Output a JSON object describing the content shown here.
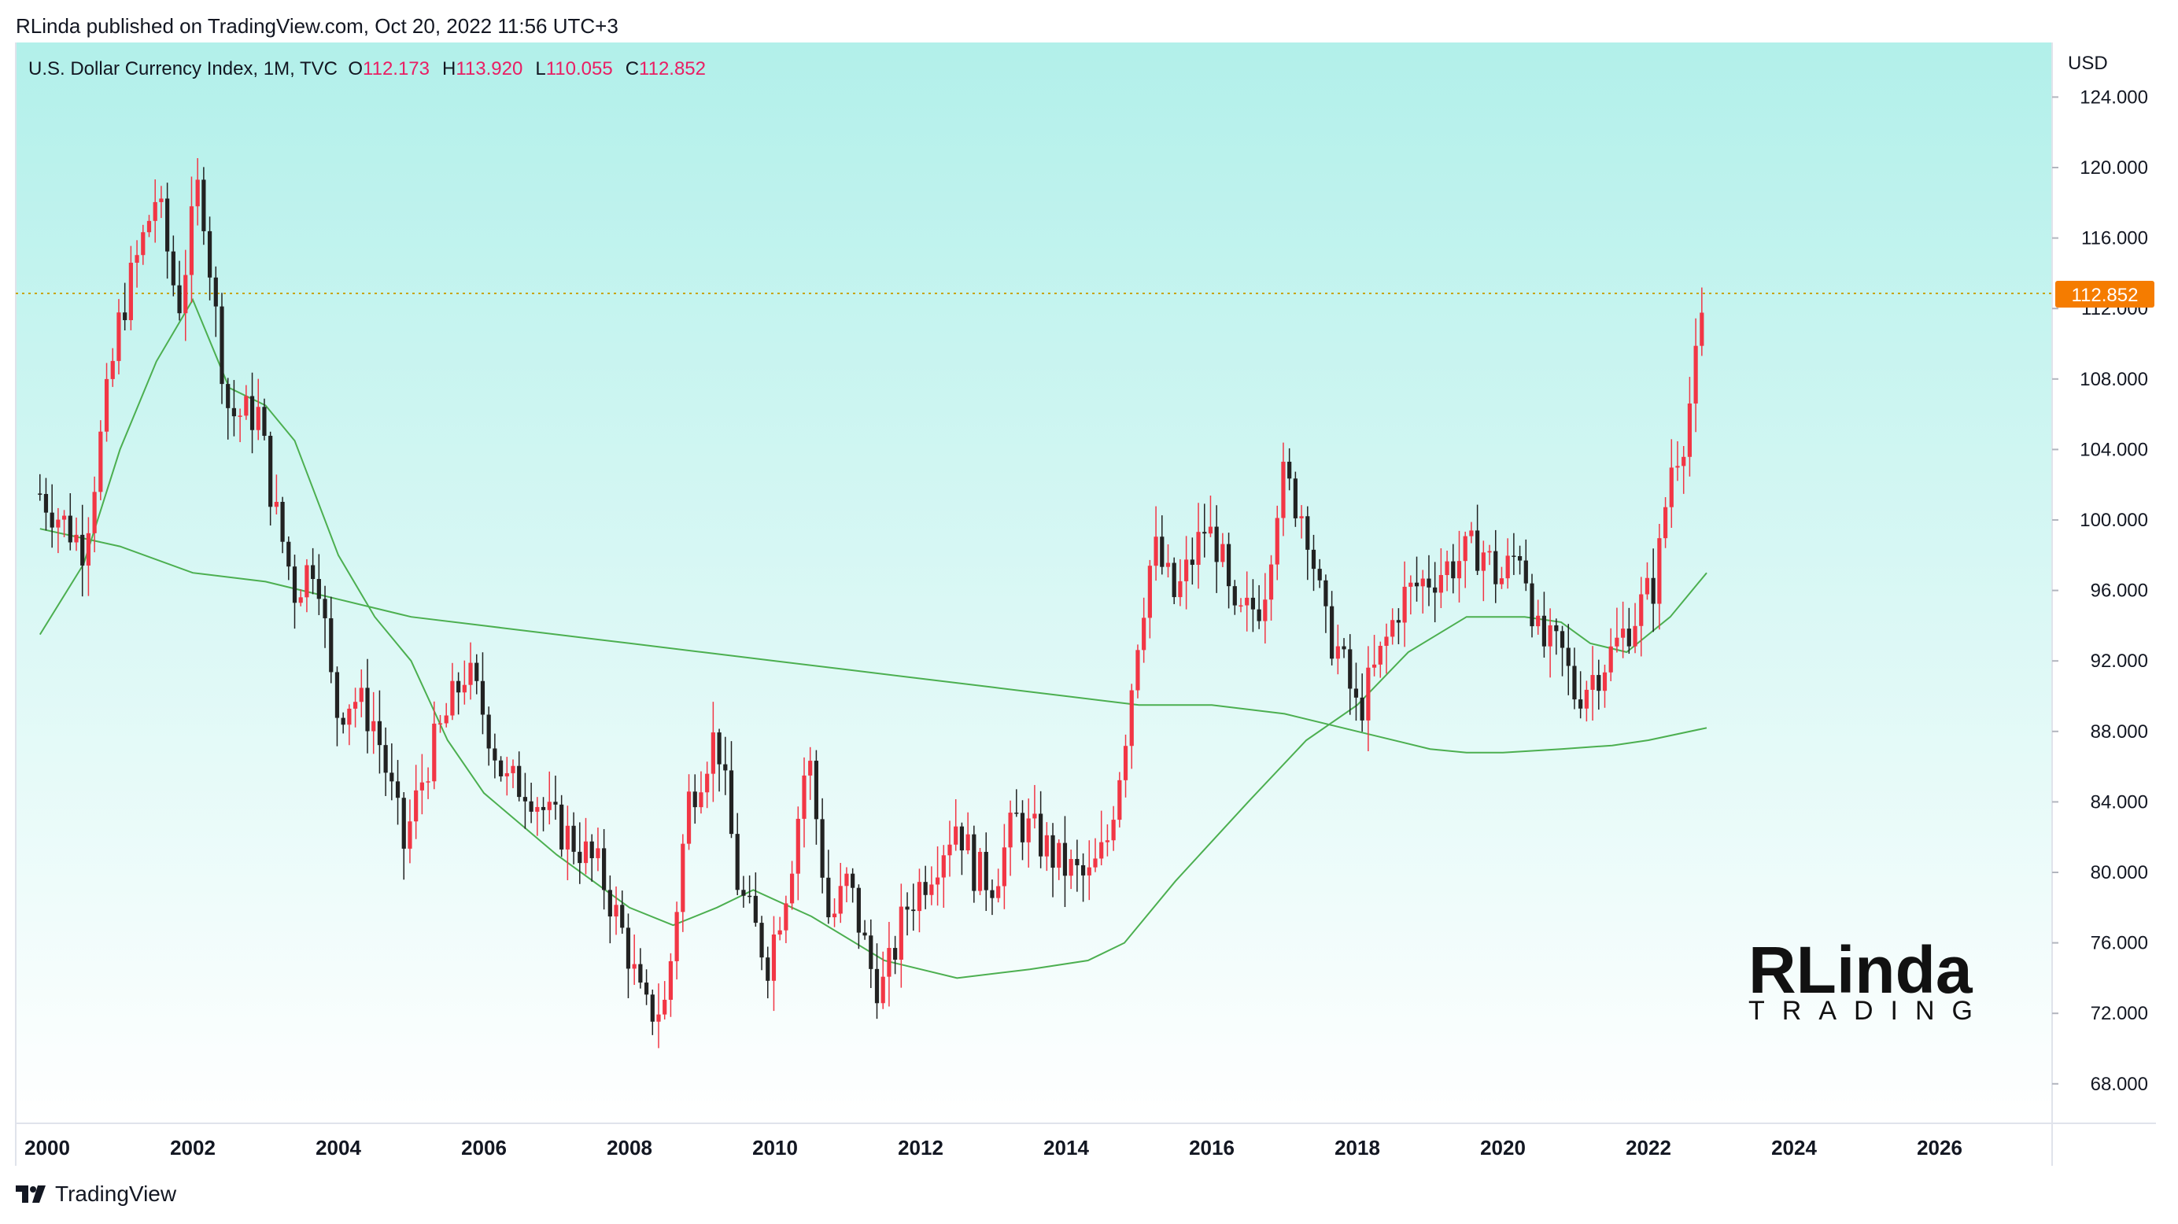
{
  "header": {
    "publisher_line": "RLinda published on TradingView.com, Oct 20, 2022 11:56 UTC+3"
  },
  "legend": {
    "symbol": "U.S. Dollar Currency Index, 1M, TVC",
    "open_label": "O",
    "open": "112.173",
    "high_label": "H",
    "high": "113.920",
    "low_label": "L",
    "low": "110.055",
    "close_label": "C",
    "close": "112.852"
  },
  "price_axis": {
    "currency": "USD",
    "ticks": [
      "124.000",
      "120.000",
      "116.000",
      "112.000",
      "108.000",
      "104.000",
      "100.000",
      "96.000",
      "92.000",
      "88.000",
      "84.000",
      "80.000",
      "76.000",
      "72.000",
      "68.000"
    ],
    "last_price_label": "112.852"
  },
  "time_axis": {
    "ticks": [
      "2000",
      "2002",
      "2004",
      "2006",
      "2008",
      "2010",
      "2012",
      "2014",
      "2016",
      "2018",
      "2020",
      "2022",
      "2024",
      "2026"
    ]
  },
  "logo": {
    "line1": "RLinda",
    "line2": "TRADING"
  },
  "footer": {
    "brand": "TradingView"
  },
  "colors": {
    "up": "#f23645",
    "down": "#222222",
    "ma": "#4caf50",
    "bg_top": "#b2f0ea",
    "bg_bottom": "#ffffff",
    "last_price": "#f57c00"
  },
  "chart_data": {
    "type": "candlestick",
    "title": "U.S. Dollar Currency Index, 1M, TVC",
    "timeframe": "1M",
    "ylabel": "USD",
    "ylim": [
      66,
      126
    ],
    "xlim": [
      1999.9,
      2028.1
    ],
    "last_close": 112.852,
    "ohlc_monthly_path": [
      [
        1999.9,
        101.5
      ],
      [
        2000.5,
        98.5
      ],
      [
        2001.0,
        111.5
      ],
      [
        2001.5,
        118.5
      ],
      [
        2001.8,
        112
      ],
      [
        2002.1,
        119.5
      ],
      [
        2002.3,
        112
      ],
      [
        2002.5,
        106
      ],
      [
        2002.9,
        106
      ],
      [
        2003.1,
        101
      ],
      [
        2003.4,
        96
      ],
      [
        2003.7,
        98
      ],
      [
        2003.95,
        89
      ],
      [
        2004.2,
        90
      ],
      [
        2004.5,
        88.5
      ],
      [
        2004.9,
        81.5
      ],
      [
        2005.2,
        86
      ],
      [
        2005.5,
        89
      ],
      [
        2005.75,
        91.5
      ],
      [
        2006.0,
        89
      ],
      [
        2006.3,
        85
      ],
      [
        2006.6,
        85
      ],
      [
        2006.9,
        83
      ],
      [
        2007.3,
        81.5
      ],
      [
        2007.6,
        80
      ],
      [
        2007.95,
        76
      ],
      [
        2008.2,
        72
      ],
      [
        2008.5,
        72.5
      ],
      [
        2008.8,
        84
      ],
      [
        2009.2,
        88
      ],
      [
        2009.5,
        79
      ],
      [
        2009.9,
        75
      ],
      [
        2010.2,
        80
      ],
      [
        2010.45,
        87
      ],
      [
        2010.75,
        77
      ],
      [
        2011.0,
        79.5
      ],
      [
        2011.35,
        74
      ],
      [
        2011.5,
        73.5
      ],
      [
        2011.8,
        78
      ],
      [
        2012.1,
        80
      ],
      [
        2012.5,
        83
      ],
      [
        2012.75,
        80
      ],
      [
        2013.0,
        79.5
      ],
      [
        2013.3,
        83
      ],
      [
        2013.6,
        82
      ],
      [
        2013.9,
        80.5
      ],
      [
        2014.3,
        79.5
      ],
      [
        2014.55,
        81.5
      ],
      [
        2014.8,
        87.5
      ],
      [
        2015.0,
        94
      ],
      [
        2015.2,
        98.5
      ],
      [
        2015.5,
        95.5
      ],
      [
        2015.9,
        99.5
      ],
      [
        2016.1,
        98.5
      ],
      [
        2016.3,
        94
      ],
      [
        2016.7,
        95.5
      ],
      [
        2016.95,
        102.5
      ],
      [
        2017.3,
        100
      ],
      [
        2017.55,
        94
      ],
      [
        2017.75,
        92.5
      ],
      [
        2018.0,
        89
      ],
      [
        2018.3,
        92
      ],
      [
        2018.6,
        95.5
      ],
      [
        2018.9,
        96.5
      ],
      [
        2019.3,
        97.5
      ],
      [
        2019.7,
        98.5
      ],
      [
        2019.95,
        96.5
      ],
      [
        2020.25,
        98.5
      ],
      [
        2020.5,
        93
      ],
      [
        2020.8,
        92.5
      ],
      [
        2021.0,
        90
      ],
      [
        2021.3,
        91.5
      ],
      [
        2021.5,
        92.5
      ],
      [
        2021.8,
        94.5
      ],
      [
        2022.1,
        96.5
      ],
      [
        2022.3,
        103
      ],
      [
        2022.5,
        105
      ],
      [
        2022.7,
        110
      ],
      [
        2022.8,
        112.9
      ]
    ],
    "series": [
      {
        "name": "Moving average (fast)",
        "points": [
          [
            1999.9,
            93.5
          ],
          [
            2000.5,
            97.5
          ],
          [
            2001.0,
            104
          ],
          [
            2001.5,
            109
          ],
          [
            2002.0,
            112.5
          ],
          [
            2002.5,
            107.5
          ],
          [
            2003.0,
            106.5
          ],
          [
            2003.4,
            104.5
          ],
          [
            2004.0,
            98
          ],
          [
            2004.5,
            94.5
          ],
          [
            2005.0,
            92
          ],
          [
            2005.5,
            87.5
          ],
          [
            2006.0,
            84.5
          ],
          [
            2007.0,
            81
          ],
          [
            2008.0,
            78
          ],
          [
            2008.6,
            77
          ],
          [
            2009.2,
            78
          ],
          [
            2009.7,
            79
          ],
          [
            2010.5,
            77.5
          ],
          [
            2011.5,
            75
          ],
          [
            2012.5,
            74
          ],
          [
            2013.5,
            74.5
          ],
          [
            2014.3,
            75
          ],
          [
            2014.8,
            76
          ],
          [
            2015.5,
            79.5
          ],
          [
            2016.5,
            84
          ],
          [
            2017.3,
            87.5
          ],
          [
            2018.0,
            89.5
          ],
          [
            2018.7,
            92.5
          ],
          [
            2019.5,
            94.5
          ],
          [
            2020.3,
            94.5
          ],
          [
            2020.8,
            94.2
          ],
          [
            2021.2,
            93
          ],
          [
            2021.7,
            92.5
          ],
          [
            2022.3,
            94.5
          ],
          [
            2022.8,
            97
          ]
        ]
      },
      {
        "name": "Moving average (slow)",
        "points": [
          [
            1999.9,
            99.5
          ],
          [
            2001.0,
            98.5
          ],
          [
            2002.0,
            97
          ],
          [
            2003.0,
            96.5
          ],
          [
            2004.0,
            95.5
          ],
          [
            2005.0,
            94.5
          ],
          [
            2006.0,
            94
          ],
          [
            2007.0,
            93.5
          ],
          [
            2008.0,
            93
          ],
          [
            2009.0,
            92.5
          ],
          [
            2010.0,
            92
          ],
          [
            2011.0,
            91.5
          ],
          [
            2012.0,
            91
          ],
          [
            2013.0,
            90.5
          ],
          [
            2014.0,
            90
          ],
          [
            2015.0,
            89.5
          ],
          [
            2016.0,
            89.5
          ],
          [
            2017.0,
            89
          ],
          [
            2018.0,
            88
          ],
          [
            2019.0,
            87
          ],
          [
            2019.5,
            86.8
          ],
          [
            2020.0,
            86.8
          ],
          [
            2020.8,
            87
          ],
          [
            2021.5,
            87.2
          ],
          [
            2022.0,
            87.5
          ],
          [
            2022.8,
            88.2
          ]
        ]
      }
    ]
  }
}
